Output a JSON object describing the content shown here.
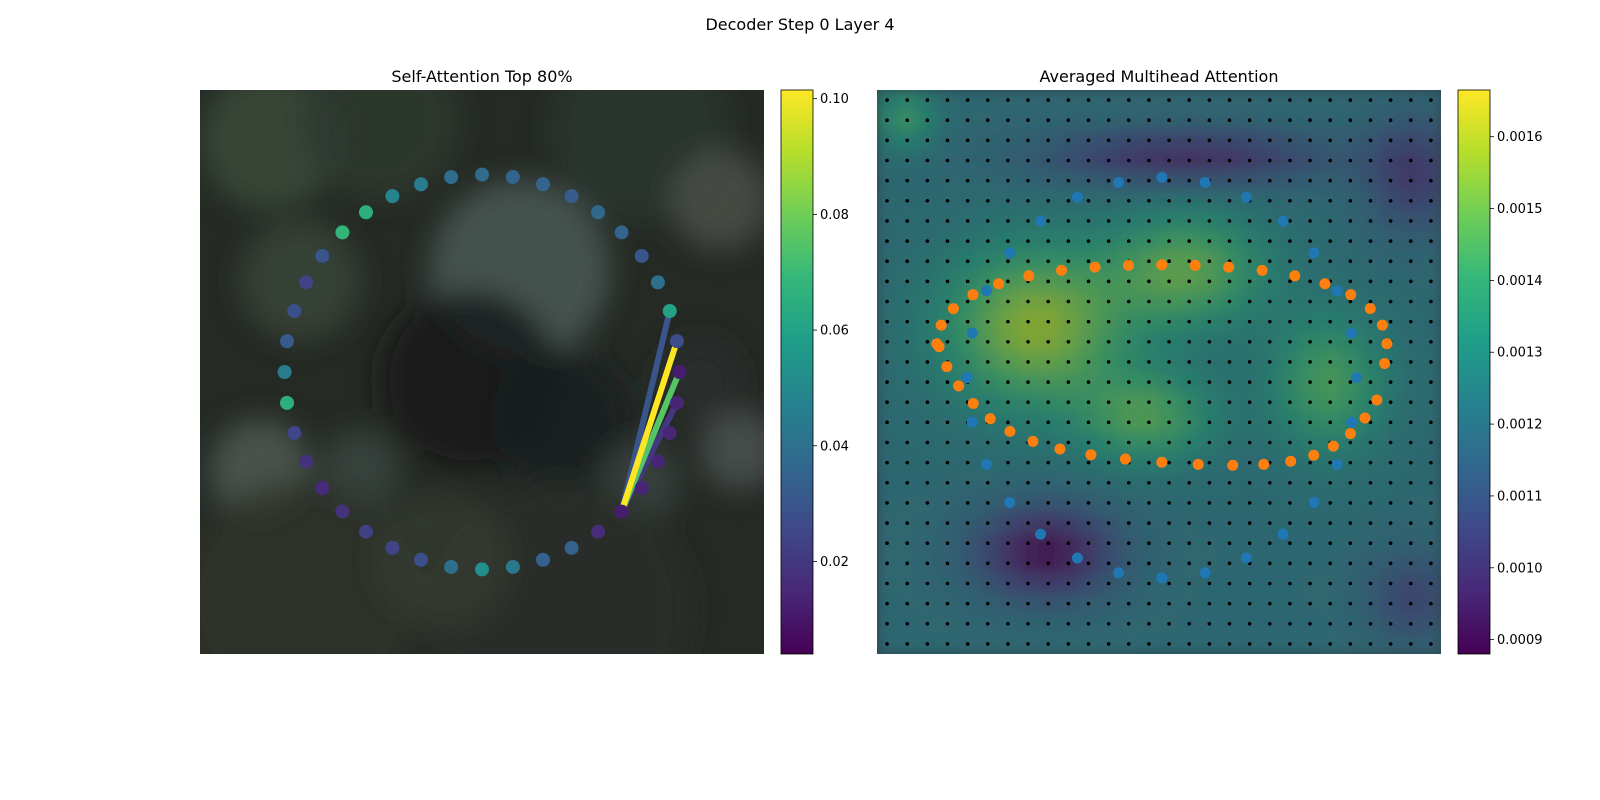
{
  "figure": {
    "suptitle": "Decoder Step 0 Layer 4"
  },
  "colors": {
    "viridis": [
      "#440154",
      "#482878",
      "#3e4989",
      "#31688e",
      "#26828e",
      "#1f9e89",
      "#35b779",
      "#6ece58",
      "#b5de2b",
      "#fde725"
    ],
    "background_left": "#252a25",
    "blue_points": "#1f77b4",
    "orange_points": "#ff7f0e",
    "grid_dots": "#000000"
  },
  "chart_data": [
    {
      "type": "scatter",
      "title": "Self-Attention Top 80%",
      "colorbar": {
        "vmin": 0.004,
        "vmax": 0.1015,
        "ticks": [
          0.02,
          0.04,
          0.06,
          0.08,
          0.1
        ],
        "tick_labels": [
          "0.02",
          "0.04",
          "0.06",
          "0.08",
          "0.10"
        ]
      },
      "points": {
        "count": 40,
        "center": [
          0.5,
          0.5
        ],
        "radius": 0.35,
        "start_angle_deg": 90,
        "values": [
          0.038,
          0.035,
          0.035,
          0.032,
          0.037,
          0.035,
          0.03,
          0.04,
          0.06,
          0.027,
          0.012,
          0.014,
          0.014,
          0.014,
          0.014,
          0.012,
          0.016,
          0.034,
          0.034,
          0.043,
          0.052,
          0.04,
          0.028,
          0.024,
          0.023,
          0.018,
          0.016,
          0.018,
          0.025,
          0.065,
          0.045,
          0.032,
          0.028,
          0.024,
          0.03,
          0.068,
          0.065,
          0.048,
          0.045,
          0.038
        ]
      },
      "attention_lines": {
        "from_index": 15,
        "lines": [
          {
            "to_index": 8,
            "value": 0.03
          },
          {
            "to_index": 9,
            "value": 0.1015
          },
          {
            "to_index": 10,
            "value": 0.075
          },
          {
            "to_index": 11,
            "value": 0.02
          }
        ]
      }
    },
    {
      "type": "heatmap",
      "title": "Averaged Multihead Attention",
      "colorbar": {
        "vmin": 0.00088,
        "vmax": 0.001665,
        "ticks": [
          0.0009,
          0.001,
          0.0011,
          0.0012,
          0.0013,
          0.0014,
          0.0015,
          0.0016
        ],
        "tick_labels": [
          "0.0009",
          "0.0010",
          "0.0011",
          "0.0012",
          "0.0013",
          "0.0014",
          "0.0015",
          "0.0016"
        ]
      },
      "grid_size": 28,
      "reference_points": {
        "count": 28
      },
      "sampling_points": {
        "count": 40
      }
    }
  ]
}
